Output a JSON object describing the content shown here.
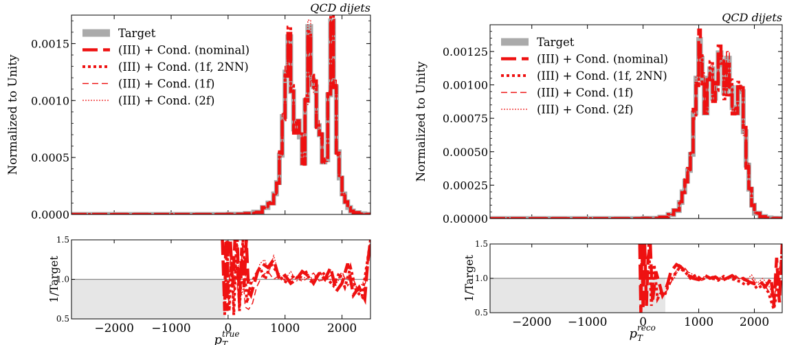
{
  "legend_entries": [
    {
      "label": "Target",
      "color": "#aaaaaa",
      "dash": "",
      "width": 7
    },
    {
      "label": "(III) + Cond. (nominal)",
      "color": "#ee1111",
      "dash": "22,8",
      "width": 4.5
    },
    {
      "label": "(III) + Cond. (1f, 2NN)",
      "color": "#ee1111",
      "dash": "4,4",
      "width": 4
    },
    {
      "label": "(III) + Cond. (1f)",
      "color": "#ee1111",
      "dash": "9,5",
      "width": 1.5
    },
    {
      "label": "(III) + Cond. (2f)",
      "color": "#ee1111",
      "dash": "2,2",
      "width": 1.3
    }
  ],
  "colors": {
    "target": "#aaaaaa",
    "model": "#ee1111",
    "ratio_band": "#e6e6e6",
    "unity_line": "#888888"
  },
  "chart_data": [
    {
      "type": "line",
      "title": "QCD dijets",
      "ylabel": "Normalized to Unity",
      "xlabel": "p_T^{true}",
      "x_symbol": "p",
      "x_sub": "T",
      "x_sup": "true",
      "xlim": [
        -2750,
        2500
      ],
      "ylim": [
        0,
        0.00175
      ],
      "yticks": [
        0.0,
        0.0005,
        0.001,
        0.0015
      ],
      "yticklabels": [
        "0.0000",
        "0.0005",
        "0.0010",
        "0.0015"
      ],
      "xticks": [
        -2000,
        -1000,
        0,
        1000,
        2000
      ],
      "xticklabels": [
        "−2000",
        "−1000",
        "0",
        "1000",
        "2000"
      ],
      "target": {
        "x": [
          -2750,
          -500,
          0,
          300,
          450,
          600,
          700,
          800,
          850,
          900,
          950,
          1000,
          1050,
          1100,
          1150,
          1200,
          1250,
          1300,
          1350,
          1400,
          1450,
          1500,
          1550,
          1600,
          1650,
          1700,
          1750,
          1800,
          1850,
          1900,
          1950,
          2000,
          2050,
          2100,
          2150,
          2200,
          2300,
          2400,
          2500
        ],
        "y": [
          0,
          0,
          2e-06,
          8e-06,
          2e-05,
          6e-05,
          0.0001,
          0.00018,
          0.00028,
          0.00052,
          0.00086,
          0.00125,
          0.00156,
          0.00108,
          0.00075,
          0.00082,
          0.00068,
          0.00045,
          0.001,
          0.00165,
          0.00118,
          0.00112,
          0.00078,
          0.0007,
          0.00046,
          0.00048,
          0.00105,
          0.0017,
          0.00112,
          0.00055,
          0.00032,
          0.00018,
          0.00011,
          6e-05,
          3e-05,
          1.5e-05,
          5e-06,
          1e-06,
          0
        ]
      },
      "ratio": {
        "ylim": [
          0.5,
          1.5
        ],
        "yticks": [
          0.5,
          1.0,
          1.5
        ],
        "yticklabels": [
          "0.5",
          "1.0",
          "1.5"
        ],
        "ylabel": "1/Target",
        "band_xmax": -50,
        "variants": [
          {
            "x": [
              -100,
              -60,
              -40,
              -20,
              0,
              40,
              80,
              120,
              160,
              200,
              240,
              280,
              320,
              360,
              400,
              460,
              520,
              600,
              700,
              800,
              900,
              1000,
              1100,
              1200,
              1300,
              1400,
              1500,
              1600,
              1700,
              1800,
              1900,
              2000,
              2100,
              2200,
              2300,
              2400,
              2450,
              2500
            ],
            "y": [
              1.5,
              0.6,
              1.5,
              0.6,
              1.5,
              1.5,
              0.9,
              1.5,
              1.5,
              0.7,
              1.4,
              0.9,
              1.5,
              0.85,
              0.8,
              0.95,
              1.1,
              1.2,
              1.15,
              1.25,
              1.0,
              1.05,
              0.95,
              1.0,
              1.1,
              1.05,
              0.95,
              1.08,
              1.0,
              1.15,
              0.85,
              0.95,
              1.2,
              0.8,
              0.9,
              0.75,
              1.2,
              1.5
            ]
          },
          {
            "x": [
              -60,
              -20,
              20,
              60,
              100,
              150,
              200,
              260,
              330,
              400,
              480,
              560,
              650,
              750,
              850,
              950,
              1050,
              1150,
              1250,
              1350,
              1450,
              1550,
              1650,
              1750,
              1850,
              1950,
              2050,
              2150,
              2250,
              2350,
              2450,
              2500
            ],
            "y": [
              0.55,
              1.5,
              0.6,
              1.3,
              0.55,
              1.5,
              0.6,
              1.5,
              0.7,
              0.95,
              1.05,
              1.15,
              1.0,
              1.2,
              1.1,
              1.0,
              0.95,
              1.05,
              1.0,
              1.12,
              0.98,
              1.03,
              1.1,
              1.0,
              0.92,
              1.08,
              0.9,
              1.15,
              0.85,
              0.78,
              1.25,
              1.5
            ]
          },
          {
            "x": [
              0,
              50,
              90,
              140,
              190,
              240,
              300,
              360,
              430,
              500,
              600,
              700,
              800,
              900,
              1000,
              1100,
              1200,
              1300,
              1400,
              1500,
              1600,
              1700,
              1800,
              1900,
              2000,
              2100,
              2200,
              2300,
              2400,
              2500
            ],
            "y": [
              0.6,
              1.4,
              0.55,
              1.2,
              0.6,
              1.3,
              0.65,
              0.62,
              0.7,
              0.9,
              1.05,
              1.1,
              1.0,
              1.05,
              0.98,
              1.0,
              1.05,
              0.97,
              1.02,
              1.08,
              0.98,
              1.0,
              1.05,
              0.96,
              1.1,
              0.92,
              1.0,
              0.83,
              0.9,
              1.4
            ]
          },
          {
            "x": [
              80,
              160,
              240,
              320,
              400,
              480,
              560,
              640,
              720,
              800,
              900,
              1000,
              1100,
              1200,
              1300,
              1400,
              1500,
              1600,
              1700,
              1800,
              1900,
              2000,
              2100,
              2200,
              2300,
              2400,
              2500
            ],
            "y": [
              0.9,
              1.3,
              0.8,
              1.1,
              0.95,
              1.0,
              1.2,
              1.25,
              1.1,
              1.3,
              1.05,
              1.0,
              1.1,
              0.98,
              1.0,
              1.05,
              1.0,
              1.1,
              1.0,
              1.0,
              0.95,
              1.05,
              1.0,
              0.92,
              0.88,
              1.0,
              1.5
            ]
          }
        ]
      }
    },
    {
      "type": "line",
      "title": "QCD dijets",
      "ylabel": "Normalized to Unity",
      "xlabel": "p_T^{reco}",
      "x_symbol": "p",
      "x_sub": "T",
      "x_sup": "reco",
      "xlim": [
        -2750,
        2500
      ],
      "ylim": [
        0,
        0.00145
      ],
      "yticks": [
        0.0,
        0.00025,
        0.0005,
        0.00075,
        0.001,
        0.00125
      ],
      "yticklabels": [
        "0.00000",
        "0.00025",
        "0.00050",
        "0.00075",
        "0.00100",
        "0.00125"
      ],
      "xticks": [
        -2000,
        -1000,
        0,
        1000,
        2000
      ],
      "xticklabels": [
        "−2000",
        "−1000",
        "0",
        "1000",
        "2000"
      ],
      "target": {
        "x": [
          -2750,
          -500,
          0,
          300,
          450,
          550,
          650,
          700,
          750,
          800,
          850,
          900,
          950,
          1000,
          1030,
          1060,
          1100,
          1150,
          1200,
          1250,
          1300,
          1350,
          1400,
          1450,
          1500,
          1550,
          1600,
          1650,
          1700,
          1750,
          1800,
          1850,
          1900,
          1950,
          2000,
          2100,
          2200,
          2300,
          2400,
          2500
        ],
        "y": [
          0,
          0,
          2e-06,
          1e-05,
          3e-05,
          6e-05,
          0.00012,
          0.0002,
          0.00028,
          0.00036,
          0.00048,
          0.00079,
          0.00105,
          0.00134,
          0.0012,
          0.00104,
          0.00079,
          0.00105,
          0.00112,
          0.0009,
          0.00101,
          0.00124,
          0.00115,
          0.00094,
          0.0012,
          0.00098,
          0.00083,
          0.00079,
          0.00098,
          0.00095,
          0.00065,
          0.0004,
          0.00022,
          0.0001,
          4e-05,
          1.5e-05,
          5e-06,
          2e-06,
          1e-06,
          0
        ]
      },
      "ratio": {
        "ylim": [
          0.5,
          1.5
        ],
        "yticks": [
          0.5,
          1.0,
          1.5
        ],
        "yticklabels": [
          "0.5",
          "1.0",
          "1.5"
        ],
        "ylabel": "1/Target",
        "band_xmax": 400,
        "variants": [
          {
            "x": [
              -60,
              -40,
              -20,
              0,
              30,
              60,
              90,
              130,
              170,
              230,
              300,
              350,
              400,
              450,
              500,
              600,
              700,
              800,
              900,
              1000,
              1100,
              1200,
              1300,
              1400,
              1500,
              1600,
              1700,
              1800,
              1900,
              2000,
              2100,
              2200,
              2300,
              2350,
              2400,
              2450,
              2500
            ],
            "y": [
              1.5,
              0.5,
              1.5,
              0.55,
              1.5,
              0.6,
              1.3,
              1.5,
              0.65,
              1.1,
              0.9,
              0.75,
              0.82,
              0.95,
              1.1,
              1.2,
              1.15,
              1.05,
              1.0,
              0.98,
              1.05,
              1.0,
              1.02,
              0.96,
              1.0,
              1.04,
              0.98,
              1.0,
              0.95,
              0.92,
              0.95,
              0.88,
              1.0,
              0.6,
              1.3,
              0.65,
              1.5
            ]
          },
          {
            "x": [
              100,
              150,
              200,
              260,
              330,
              400,
              480,
              560,
              650,
              750,
              850,
              950,
              1050,
              1150,
              1250,
              1350,
              1450,
              1550,
              1650,
              1750,
              1850,
              1950,
              2050,
              2150,
              2250,
              2350,
              2450,
              2500
            ],
            "y": [
              1.5,
              0.6,
              1.2,
              0.7,
              0.8,
              0.78,
              0.95,
              1.05,
              1.15,
              1.1,
              1.0,
              1.05,
              0.98,
              1.02,
              1.0,
              0.97,
              1.03,
              1.0,
              0.98,
              0.95,
              0.9,
              0.95,
              0.85,
              0.9,
              0.8,
              0.55,
              1.0,
              1.4
            ]
          },
          {
            "x": [
              400,
              480,
              560,
              650,
              750,
              850,
              950,
              1050,
              1150,
              1250,
              1350,
              1450,
              1550,
              1650,
              1750,
              1850,
              1950,
              2050,
              2150,
              2250,
              2350,
              2450,
              2500
            ],
            "y": [
              0.78,
              0.9,
              1.05,
              1.2,
              1.15,
              1.05,
              1.0,
              0.97,
              1.0,
              1.03,
              1.0,
              0.98,
              1.0,
              1.05,
              0.98,
              0.96,
              1.0,
              0.9,
              0.95,
              0.82,
              0.7,
              1.1,
              1.3
            ]
          },
          {
            "x": [
              400,
              480,
              560,
              650,
              750,
              850,
              950,
              1050,
              1150,
              1250,
              1350,
              1450,
              1550,
              1650,
              1750,
              1850,
              1950,
              2050,
              2150,
              2250,
              2350,
              2450,
              2500
            ],
            "y": [
              0.8,
              0.92,
              1.0,
              1.15,
              1.1,
              1.08,
              1.02,
              1.0,
              1.05,
              0.98,
              1.02,
              1.0,
              1.03,
              0.99,
              1.0,
              0.97,
              1.05,
              0.93,
              1.0,
              0.9,
              0.75,
              1.05,
              1.25
            ]
          }
        ]
      }
    }
  ]
}
